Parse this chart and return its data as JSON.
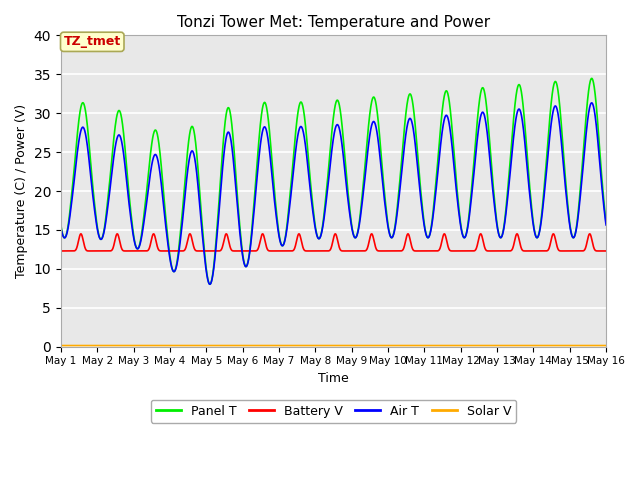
{
  "title": "Tonzi Tower Met: Temperature and Power",
  "xlabel": "Time",
  "ylabel": "Temperature (C) / Power (V)",
  "xlim": [
    0,
    15
  ],
  "ylim": [
    0,
    40
  ],
  "yticks": [
    0,
    5,
    10,
    15,
    20,
    25,
    30,
    35,
    40
  ],
  "xtick_labels": [
    "May 1",
    "May 2",
    "May 3",
    "May 4",
    "May 5",
    "May 6",
    "May 7",
    "May 8",
    "May 9",
    "May 10",
    "May 11",
    "May 12",
    "May 13",
    "May 14",
    "May 15",
    "May 16"
  ],
  "annotation_text": "TZ_tmet",
  "annotation_color": "#cc0000",
  "annotation_bg": "#ffffcc",
  "plot_bg": "#e8e8e8",
  "series": {
    "panel_t": {
      "color": "#00ee00",
      "label": "Panel T",
      "lw": 1.2
    },
    "battery_v": {
      "color": "#ff0000",
      "label": "Battery V",
      "lw": 1.2
    },
    "air_t": {
      "color": "#0000ff",
      "label": "Air T",
      "lw": 1.2
    },
    "solar_v": {
      "color": "#ffaa00",
      "label": "Solar V",
      "lw": 1.2
    }
  }
}
